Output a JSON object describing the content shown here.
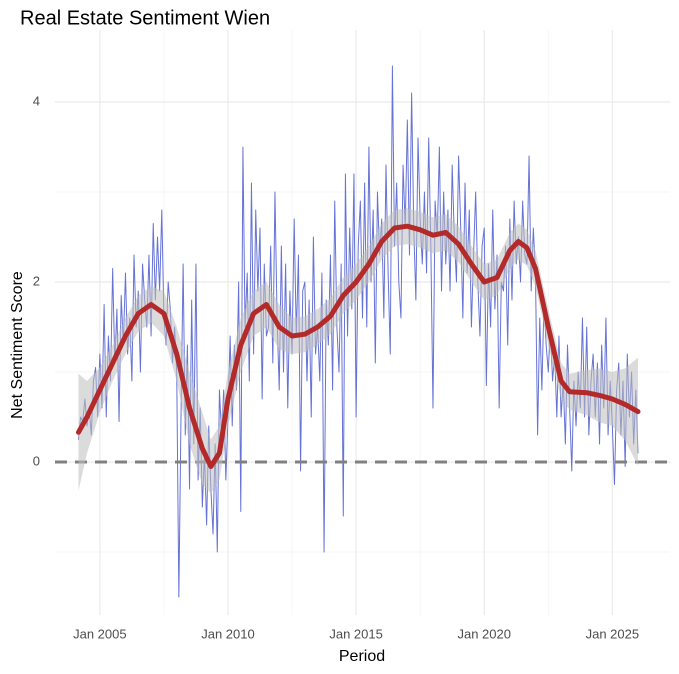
{
  "chart_data": {
    "type": "line",
    "title": "Real Estate Sentiment Wien",
    "x_label": "Period",
    "y_label": "Net Sentiment Score",
    "xlim": [
      "2003-04",
      "2027-04"
    ],
    "xticks": [
      {
        "value": "2005-01",
        "label": "Jan 2005"
      },
      {
        "value": "2010-01",
        "label": "Jan 2010"
      },
      {
        "value": "2015-01",
        "label": "Jan 2015"
      },
      {
        "value": "2020-01",
        "label": "Jan 2020"
      },
      {
        "value": "2025-01",
        "label": "Jan 2025"
      }
    ],
    "x_minor_grid": [
      "2007-07",
      "2012-07",
      "2017-07",
      "2022-07"
    ],
    "ylim": [
      -1.7,
      4.8
    ],
    "yticks": [
      0,
      2,
      4
    ],
    "y_minor_grid": [
      -1,
      1,
      3
    ],
    "hline": 0,
    "grid": true,
    "series": [
      {
        "color": "#6673d6",
        "x": [
          "2004-03",
          "2004-04",
          "2004-05",
          "2004-06",
          "2004-07",
          "2004-08",
          "2004-09",
          "2004-10",
          "2004-11",
          "2004-12",
          "2005-01",
          "2005-02",
          "2005-03",
          "2005-04",
          "2005-05",
          "2005-06",
          "2005-07",
          "2005-08",
          "2005-09",
          "2005-10",
          "2005-11",
          "2005-12",
          "2006-01",
          "2006-02",
          "2006-03",
          "2006-04",
          "2006-05",
          "2006-06",
          "2006-07",
          "2006-08",
          "2006-09",
          "2006-10",
          "2006-11",
          "2006-12",
          "2007-01",
          "2007-02",
          "2007-03",
          "2007-04",
          "2007-05",
          "2007-06",
          "2007-07",
          "2007-08",
          "2007-09",
          "2007-10",
          "2007-11",
          "2007-12",
          "2008-01",
          "2008-02",
          "2008-03",
          "2008-04",
          "2008-05",
          "2008-06",
          "2008-07",
          "2008-08",
          "2008-09",
          "2008-10",
          "2008-11",
          "2008-12",
          "2009-01",
          "2009-02",
          "2009-03",
          "2009-04",
          "2009-05",
          "2009-06",
          "2009-07",
          "2009-08",
          "2009-09",
          "2009-10",
          "2009-11",
          "2009-12",
          "2010-01",
          "2010-02",
          "2010-03",
          "2010-04",
          "2010-05",
          "2010-06",
          "2010-07",
          "2010-08",
          "2010-09",
          "2010-10",
          "2010-11",
          "2010-12",
          "2011-01",
          "2011-02",
          "2011-03",
          "2011-04",
          "2011-05",
          "2011-06",
          "2011-07",
          "2011-08",
          "2011-09",
          "2011-10",
          "2011-11",
          "2011-12",
          "2012-01",
          "2012-02",
          "2012-03",
          "2012-04",
          "2012-05",
          "2012-06",
          "2012-07",
          "2012-08",
          "2012-09",
          "2012-10",
          "2012-11",
          "2012-12",
          "2013-01",
          "2013-02",
          "2013-03",
          "2013-04",
          "2013-05",
          "2013-06",
          "2013-07",
          "2013-08",
          "2013-09",
          "2013-10",
          "2013-11",
          "2013-12",
          "2014-01",
          "2014-02",
          "2014-03",
          "2014-04",
          "2014-05",
          "2014-06",
          "2014-07",
          "2014-08",
          "2014-09",
          "2014-10",
          "2014-11",
          "2014-12",
          "2015-01",
          "2015-02",
          "2015-03",
          "2015-04",
          "2015-05",
          "2015-06",
          "2015-07",
          "2015-08",
          "2015-09",
          "2015-10",
          "2015-11",
          "2015-12",
          "2016-01",
          "2016-02",
          "2016-03",
          "2016-04",
          "2016-05",
          "2016-06",
          "2016-07",
          "2016-08",
          "2016-09",
          "2016-10",
          "2016-11",
          "2016-12",
          "2017-01",
          "2017-02",
          "2017-03",
          "2017-04",
          "2017-05",
          "2017-06",
          "2017-07",
          "2017-08",
          "2017-09",
          "2017-10",
          "2017-11",
          "2017-12",
          "2018-01",
          "2018-02",
          "2018-03",
          "2018-04",
          "2018-05",
          "2018-06",
          "2018-07",
          "2018-08",
          "2018-09",
          "2018-10",
          "2018-11",
          "2018-12",
          "2019-01",
          "2019-02",
          "2019-03",
          "2019-04",
          "2019-05",
          "2019-06",
          "2019-07",
          "2019-08",
          "2019-09",
          "2019-10",
          "2019-11",
          "2019-12",
          "2020-01",
          "2020-02",
          "2020-03",
          "2020-04",
          "2020-05",
          "2020-06",
          "2020-07",
          "2020-08",
          "2020-09",
          "2020-10",
          "2020-11",
          "2020-12",
          "2021-01",
          "2021-02",
          "2021-03",
          "2021-04",
          "2021-05",
          "2021-06",
          "2021-07",
          "2021-08",
          "2021-09",
          "2021-10",
          "2021-11",
          "2021-12",
          "2022-01",
          "2022-02",
          "2022-03",
          "2022-04",
          "2022-05",
          "2022-06",
          "2022-07",
          "2022-08",
          "2022-09",
          "2022-10",
          "2022-11",
          "2022-12",
          "2023-01",
          "2023-02",
          "2023-03",
          "2023-04",
          "2023-05",
          "2023-06",
          "2023-07",
          "2023-08",
          "2023-09",
          "2023-10",
          "2023-11",
          "2023-12",
          "2024-01",
          "2024-02",
          "2024-03",
          "2024-04",
          "2024-05",
          "2024-06",
          "2024-07",
          "2024-08",
          "2024-09",
          "2024-10",
          "2024-11",
          "2024-12",
          "2025-01",
          "2025-02",
          "2025-03",
          "2025-04",
          "2025-05",
          "2025-06",
          "2025-07",
          "2025-08",
          "2025-09",
          "2025-10",
          "2025-11",
          "2025-12",
          "2026-01"
        ],
        "values": [
          0.25,
          0.5,
          0.45,
          0.7,
          0.4,
          0.6,
          0.3,
          0.9,
          1.05,
          0.5,
          1.2,
          0.6,
          1.75,
          0.5,
          1.4,
          0.9,
          2.15,
          1.1,
          1.7,
          0.45,
          1.85,
          1.3,
          2.1,
          1.2,
          1.6,
          0.9,
          2.3,
          1.5,
          1.9,
          1.0,
          2.2,
          1.8,
          1.5,
          2.3,
          1.4,
          2.65,
          1.8,
          2.5,
          1.9,
          2.8,
          1.6,
          1.3,
          2.0,
          1.7,
          1.1,
          1.5,
          1.0,
          -1.5,
          0.5,
          2.2,
          0.3,
          1.3,
          -0.3,
          1.8,
          0.2,
          2.2,
          -0.2,
          0.6,
          -0.5,
          0.1,
          -0.7,
          0.4,
          -0.3,
          -0.8,
          0.2,
          -1.0,
          0.8,
          0.3,
          0.8,
          -0.2,
          0.5,
          1.4,
          0.4,
          1.3,
          0.8,
          2.0,
          -0.55,
          3.5,
          1.5,
          2.1,
          0.9,
          3.1,
          1.2,
          2.8,
          1.9,
          2.6,
          0.7,
          2.2,
          1.4,
          1.5,
          2.4,
          1.1,
          3.0,
          1.6,
          0.8,
          2.4,
          1.0,
          2.2,
          0.6,
          1.9,
          1.2,
          2.7,
          1.4,
          2.3,
          -0.1,
          1.9,
          2.0,
          0.9,
          1.8,
          0.5,
          2.5,
          1.2,
          1.5,
          0.9,
          2.1,
          -1.0,
          1.8,
          1.3,
          2.3,
          0.8,
          2.9,
          1.5,
          1.0,
          2.2,
          -0.6,
          3.2,
          1.4,
          2.6,
          1.7,
          3.2,
          0.5,
          2.4,
          2.9,
          1.6,
          3.1,
          1.5,
          3.5,
          2.0,
          2.8,
          1.1,
          3.0,
          2.3,
          2.7,
          1.6,
          3.3,
          2.1,
          1.2,
          4.4,
          2.4,
          3.1,
          2.0,
          1.6,
          3.3,
          2.6,
          3.8,
          2.3,
          4.1,
          2.6,
          1.8,
          3.6,
          2.7,
          2.2,
          3.0,
          2.1,
          3.6,
          2.4,
          0.6,
          2.9,
          2.5,
          3.5,
          1.9,
          3.0,
          2.2,
          2.8,
          1.9,
          3.3,
          2.5,
          2.0,
          3.4,
          2.6,
          1.6,
          3.1,
          2.1,
          2.8,
          1.5,
          2.3,
          3.0,
          2.0,
          1.4,
          2.4,
          2.6,
          0.85,
          2.2,
          1.5,
          2.8,
          1.7,
          2.3,
          0.6,
          2.0,
          1.9,
          2.4,
          1.3,
          2.7,
          1.8,
          2.9,
          2.2,
          2.5,
          2.0,
          2.9,
          2.3,
          2.2,
          3.4,
          1.9,
          2.6,
          2.1,
          0.3,
          1.6,
          0.8,
          1.8,
          1.3,
          1.0,
          1.5,
          0.9,
          1.2,
          0.5,
          1.4,
          0.5,
          0.9,
          0.2,
          1.3,
          0.6,
          -0.1,
          0.9,
          0.4,
          1.0,
          0.6,
          1.6,
          0.5,
          1.5,
          0.3,
          0.9,
          1.2,
          0.5,
          1.1,
          0.2,
          1.3,
          0.6,
          1.6,
          0.3,
          0.9,
          0.4,
          -0.25,
          0.8,
          1.1,
          0.3,
          0.9,
          -0.05,
          1.2,
          0.5,
          1.0,
          0.2,
          0.8,
          0.1
        ]
      },
      {
        "color": "#b22a2a",
        "band_color": "#bdbdbd",
        "x": [
          "2004-03",
          "2004-07",
          "2005-01",
          "2005-07",
          "2006-01",
          "2006-07",
          "2007-01",
          "2007-07",
          "2008-01",
          "2008-07",
          "2009-01",
          "2009-05",
          "2009-09",
          "2010-01",
          "2010-07",
          "2011-01",
          "2011-07",
          "2012-01",
          "2012-07",
          "2013-01",
          "2013-07",
          "2014-01",
          "2014-07",
          "2015-01",
          "2015-07",
          "2016-01",
          "2016-07",
          "2017-01",
          "2017-07",
          "2018-01",
          "2018-07",
          "2019-01",
          "2019-07",
          "2020-01",
          "2020-07",
          "2021-01",
          "2021-05",
          "2021-09",
          "2022-01",
          "2022-07",
          "2023-01",
          "2023-05",
          "2024-01",
          "2024-07",
          "2025-01",
          "2025-07",
          "2026-01"
        ],
        "values": [
          0.33,
          0.5,
          0.8,
          1.1,
          1.4,
          1.65,
          1.75,
          1.65,
          1.2,
          0.6,
          0.15,
          -0.05,
          0.1,
          0.7,
          1.3,
          1.65,
          1.75,
          1.5,
          1.4,
          1.42,
          1.5,
          1.62,
          1.85,
          2.0,
          2.2,
          2.45,
          2.6,
          2.62,
          2.58,
          2.52,
          2.55,
          2.42,
          2.2,
          2.0,
          2.05,
          2.35,
          2.45,
          2.38,
          2.15,
          1.5,
          0.9,
          0.78,
          0.77,
          0.74,
          0.7,
          0.64,
          0.56
        ],
        "lower": [
          -0.32,
          0.1,
          0.55,
          0.9,
          1.2,
          1.45,
          1.55,
          1.4,
          0.9,
          0.2,
          -0.25,
          -0.35,
          -0.2,
          0.4,
          1.0,
          1.4,
          1.5,
          1.25,
          1.2,
          1.22,
          1.3,
          1.42,
          1.65,
          1.8,
          2.0,
          2.25,
          2.4,
          2.42,
          2.38,
          2.32,
          2.35,
          2.22,
          2.0,
          1.8,
          1.85,
          2.15,
          2.25,
          2.18,
          1.95,
          1.3,
          0.7,
          0.58,
          0.52,
          0.44,
          0.4,
          0.24,
          -0.04
        ],
        "upper": [
          0.98,
          0.9,
          1.05,
          1.3,
          1.6,
          1.85,
          1.95,
          1.9,
          1.5,
          1.0,
          0.55,
          0.25,
          0.4,
          1.0,
          1.6,
          1.9,
          2.0,
          1.75,
          1.6,
          1.62,
          1.7,
          1.82,
          2.05,
          2.2,
          2.4,
          2.65,
          2.8,
          2.82,
          2.78,
          2.72,
          2.75,
          2.62,
          2.4,
          2.2,
          2.25,
          2.55,
          2.65,
          2.58,
          2.35,
          1.7,
          1.1,
          0.98,
          1.02,
          1.04,
          1.0,
          1.04,
          1.16
        ]
      }
    ]
  }
}
